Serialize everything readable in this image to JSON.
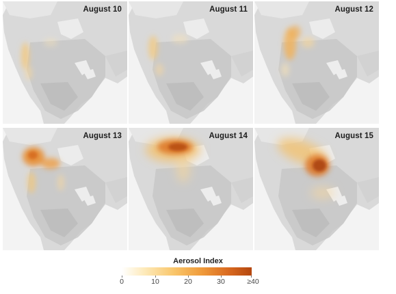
{
  "panels": [
    {
      "label": "August 10"
    },
    {
      "label": "August 11"
    },
    {
      "label": "August 12"
    },
    {
      "label": "August 13"
    },
    {
      "label": "August 14"
    },
    {
      "label": "August 15"
    }
  ],
  "legend": {
    "title": "Aerosol Index",
    "ticks": [
      "0",
      "10",
      "20",
      "30",
      "≥40"
    ],
    "colors": [
      "#ffffff",
      "#fde9b8",
      "#f9c66b",
      "#ef9a3a",
      "#d96a20",
      "#b4470f"
    ]
  }
}
